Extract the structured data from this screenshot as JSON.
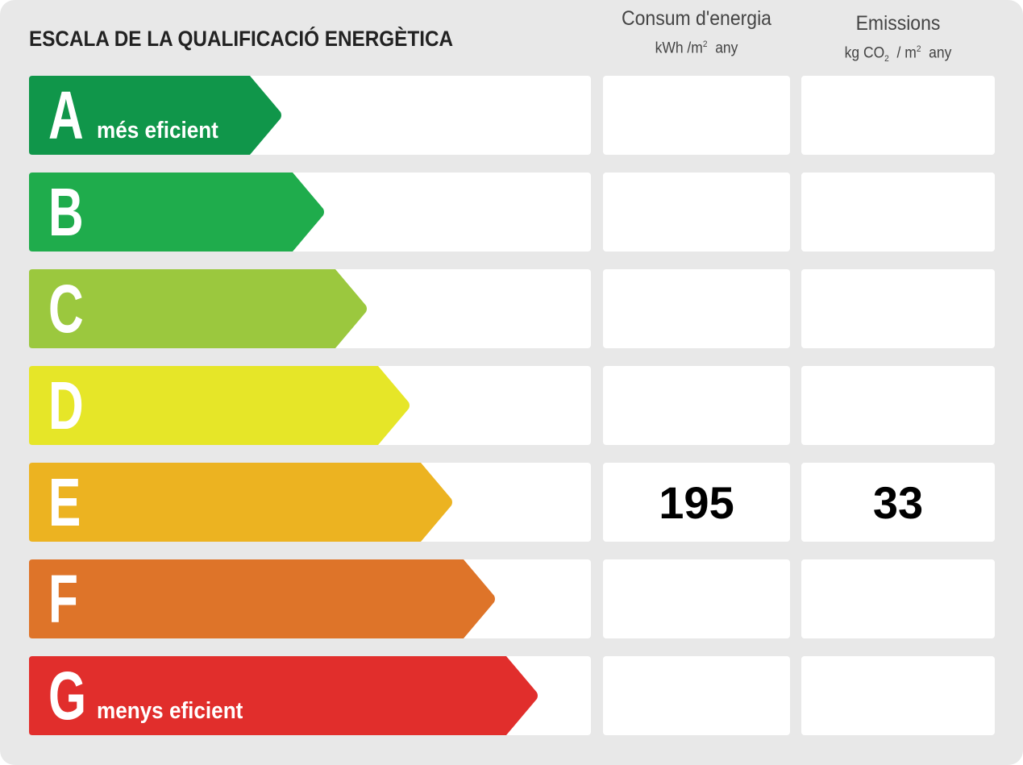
{
  "title": "ESCALA DE LA QUALIFICACIÓ ENERGÈTICA",
  "columns": {
    "energy": {
      "heading": "Consum d'energia",
      "unit_prefix": "kWh /m",
      "unit_sup": "2",
      "unit_suffix": "any"
    },
    "emissions": {
      "heading": "Emissions",
      "unit_prefix": "kg CO",
      "unit_sub": "2",
      "unit_mid": "/ m",
      "unit_sup": "2",
      "unit_suffix": "any"
    }
  },
  "ratings": [
    {
      "letter": "A",
      "subtitle": "més eficient",
      "color": "#10964a",
      "energy": "",
      "emissions": ""
    },
    {
      "letter": "B",
      "subtitle": "",
      "color": "#1fac4c",
      "energy": "",
      "emissions": ""
    },
    {
      "letter": "C",
      "subtitle": "",
      "color": "#9bc83e",
      "energy": "",
      "emissions": ""
    },
    {
      "letter": "D",
      "subtitle": "",
      "color": "#e6e628",
      "energy": "",
      "emissions": ""
    },
    {
      "letter": "E",
      "subtitle": "",
      "color": "#ecb321",
      "energy": "195",
      "emissions": "33"
    },
    {
      "letter": "F",
      "subtitle": "",
      "color": "#de7429",
      "energy": "",
      "emissions": ""
    },
    {
      "letter": "G",
      "subtitle": "menys eficient",
      "color": "#e12e2c",
      "energy": "",
      "emissions": ""
    }
  ]
}
